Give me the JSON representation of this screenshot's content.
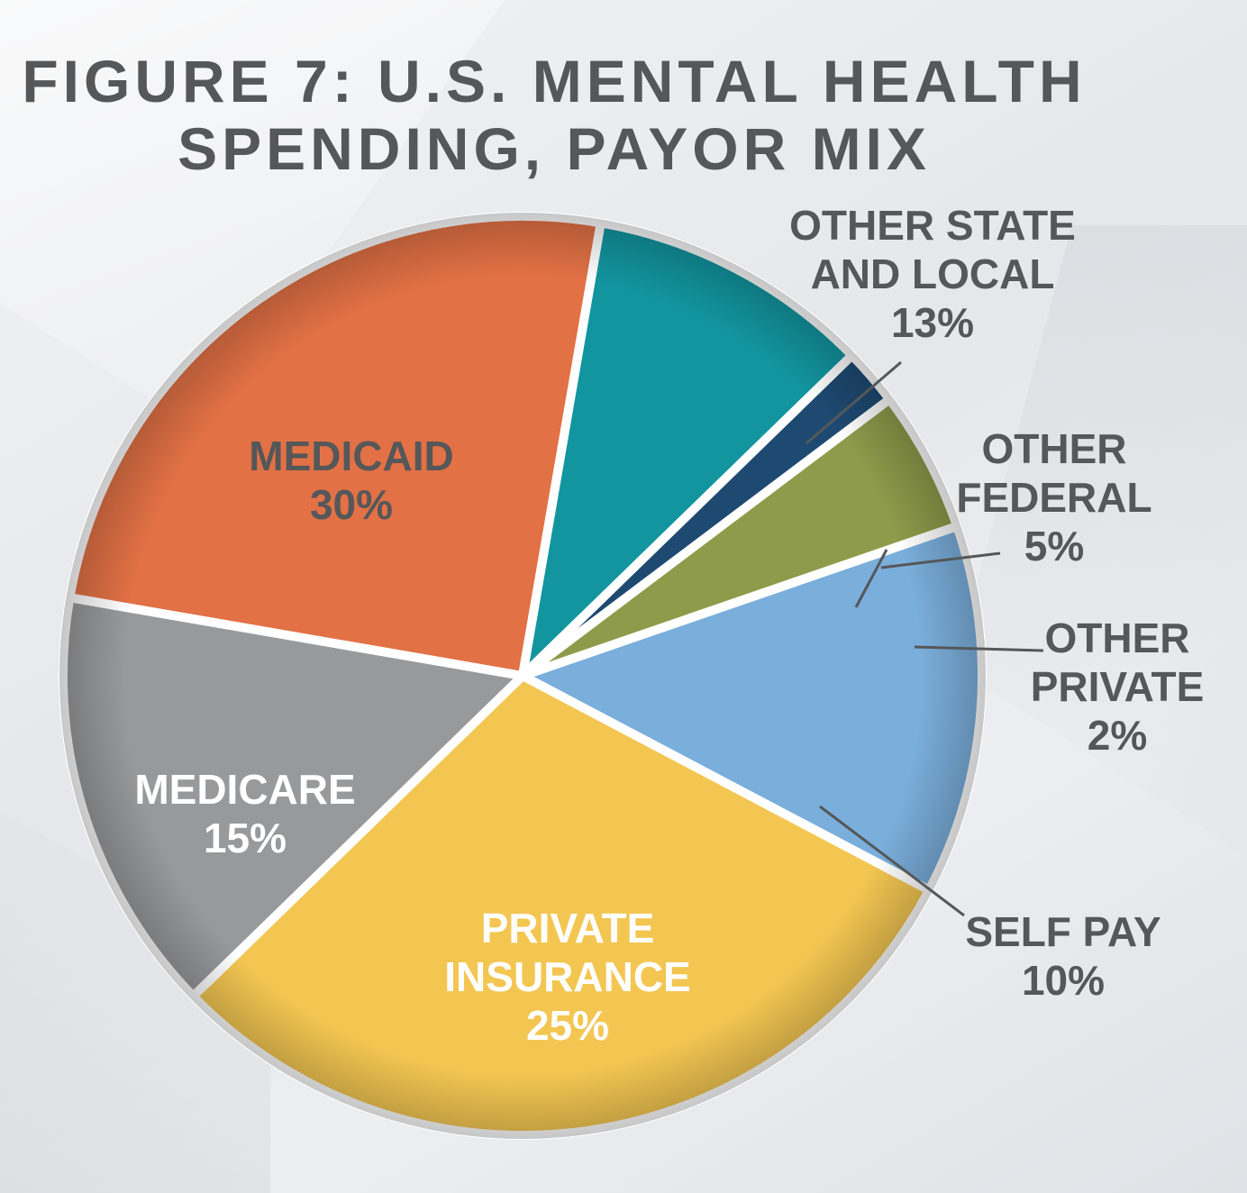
{
  "chart_data": {
    "type": "pie",
    "title_lines": [
      "FIGURE 7: U.S. MENTAL HEALTH",
      "SPENDING, PAYOR MIX"
    ],
    "slices": [
      {
        "key": "other-state-local",
        "label_lines": [
          "OTHER STATE",
          "AND LOCAL"
        ],
        "value": 13,
        "value_label": "13%",
        "color": "#7aaedb",
        "label_color": "#555759",
        "label_position": "outside"
      },
      {
        "key": "medicaid",
        "label_lines": [
          "MEDICAID"
        ],
        "value": 30,
        "value_label": "30%",
        "color": "#f3c652",
        "label_color": "#555759",
        "label_position": "inside"
      },
      {
        "key": "medicare",
        "label_lines": [
          "MEDICARE"
        ],
        "value": 15,
        "value_label": "15%",
        "color": "#98999b",
        "label_color": "#ffffff",
        "label_position": "inside"
      },
      {
        "key": "private-insurance",
        "label_lines": [
          "PRIVATE",
          "INSURANCE"
        ],
        "value": 25,
        "value_label": "25%",
        "color": "#e27145",
        "label_color": "#ffffff",
        "label_position": "inside"
      },
      {
        "key": "self-pay",
        "label_lines": [
          "SELF PAY"
        ],
        "value": 10,
        "value_label": "10%",
        "color": "#12959f",
        "label_color": "#555759",
        "label_position": "outside"
      },
      {
        "key": "other-private",
        "label_lines": [
          "OTHER",
          "PRIVATE"
        ],
        "value": 2,
        "value_label": "2%",
        "color": "#1e4a72",
        "label_color": "#555759",
        "label_position": "outside"
      },
      {
        "key": "other-federal",
        "label_lines": [
          "OTHER",
          "FEDERAL"
        ],
        "value": 5,
        "value_label": "5%",
        "color": "#8e9b4a",
        "label_color": "#555759",
        "label_position": "outside"
      }
    ]
  },
  "colors": {
    "title": "#555759",
    "label_dark": "#555759",
    "label_light": "#ffffff",
    "separator": "#ffffff"
  }
}
